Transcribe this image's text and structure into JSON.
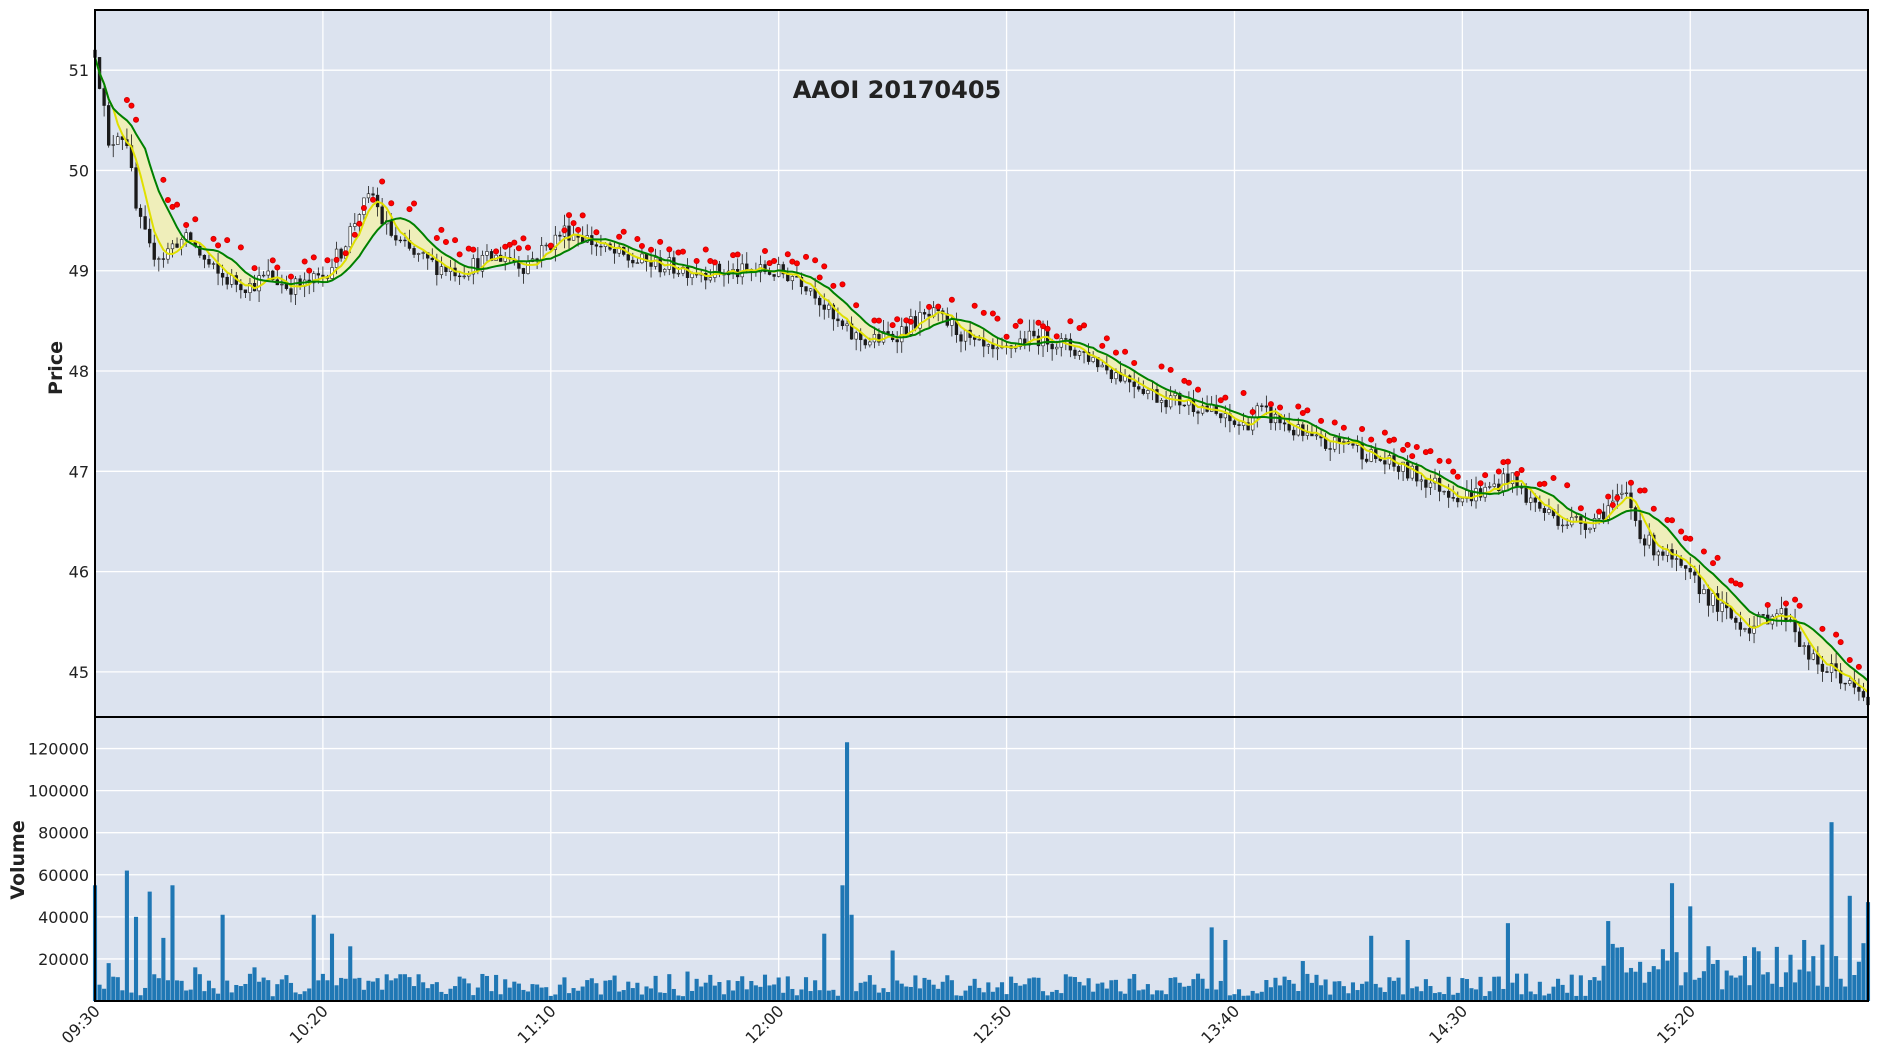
{
  "chart_data": {
    "type": "candlestick",
    "title": "AAOI 20170405",
    "colors": {
      "background": "#dce3ef",
      "grid": "#ffffff",
      "frame": "#000000",
      "candle": "#1a1a1a",
      "volume": "#1f77b4",
      "marker": "#ff0000",
      "ma_fast": "#e0e000",
      "ma_slow": "#008000",
      "band": "#f2f0b0"
    },
    "price_panel": {
      "ylabel": "Price",
      "ylim": [
        44.55,
        51.6
      ],
      "yticks": [
        45,
        46,
        47,
        48,
        49,
        50,
        51
      ],
      "ytick_labels": [
        "45",
        "46",
        "47",
        "48",
        "49",
        "50",
        "51"
      ]
    },
    "volume_panel": {
      "ylabel": "Volume",
      "ylim": [
        0,
        135000
      ],
      "yticks": [
        20000,
        40000,
        60000,
        80000,
        100000,
        120000
      ],
      "ytick_labels": [
        "20000",
        "40000",
        "60000",
        "80000",
        "100000",
        "120000"
      ]
    },
    "x_axis": {
      "start": "09:30",
      "end": "15:59",
      "xticks": [
        "09:30",
        "10:20",
        "11:10",
        "12:00",
        "12:50",
        "13:40",
        "14:30",
        "15:20"
      ]
    },
    "price_path": [
      [
        "09:30",
        51.2
      ],
      [
        "09:32",
        50.6
      ],
      [
        "09:33",
        50.2
      ],
      [
        "09:35",
        50.4
      ],
      [
        "09:37",
        50.3
      ],
      [
        "09:39",
        49.6
      ],
      [
        "09:42",
        49.2
      ],
      [
        "09:45",
        49.15
      ],
      [
        "09:48",
        49.3
      ],
      [
        "09:51",
        49.3
      ],
      [
        "09:54",
        49.1
      ],
      [
        "09:57",
        48.95
      ],
      [
        "10:00",
        48.9
      ],
      [
        "10:04",
        48.85
      ],
      [
        "10:08",
        48.95
      ],
      [
        "10:12",
        48.85
      ],
      [
        "10:16",
        48.85
      ],
      [
        "10:20",
        48.95
      ],
      [
        "10:24",
        49.2
      ],
      [
        "10:28",
        49.6
      ],
      [
        "10:31",
        49.75
      ],
      [
        "10:33",
        49.5
      ],
      [
        "10:36",
        49.3
      ],
      [
        "10:40",
        49.15
      ],
      [
        "10:45",
        49.05
      ],
      [
        "10:50",
        49.0
      ],
      [
        "10:55",
        49.1
      ],
      [
        "11:00",
        49.15
      ],
      [
        "11:04",
        49.05
      ],
      [
        "11:08",
        49.2
      ],
      [
        "11:13",
        49.4
      ],
      [
        "11:17",
        49.35
      ],
      [
        "11:22",
        49.2
      ],
      [
        "11:28",
        49.1
      ],
      [
        "11:35",
        49.05
      ],
      [
        "11:42",
        49.0
      ],
      [
        "11:50",
        48.98
      ],
      [
        "11:57",
        49.0
      ],
      [
        "12:04",
        48.95
      ],
      [
        "12:08",
        48.8
      ],
      [
        "12:12",
        48.5
      ],
      [
        "12:16",
        48.35
      ],
      [
        "12:20",
        48.3
      ],
      [
        "12:25",
        48.35
      ],
      [
        "12:30",
        48.5
      ],
      [
        "12:34",
        48.55
      ],
      [
        "12:38",
        48.45
      ],
      [
        "12:43",
        48.25
      ],
      [
        "12:48",
        48.15
      ],
      [
        "12:53",
        48.3
      ],
      [
        "12:58",
        48.35
      ],
      [
        "13:03",
        48.25
      ],
      [
        "13:08",
        48.15
      ],
      [
        "13:13",
        48.0
      ],
      [
        "13:18",
        47.9
      ],
      [
        "13:23",
        47.75
      ],
      [
        "13:28",
        47.7
      ],
      [
        "13:33",
        47.65
      ],
      [
        "13:38",
        47.5
      ],
      [
        "13:42",
        47.45
      ],
      [
        "13:45",
        47.6
      ],
      [
        "13:50",
        47.5
      ],
      [
        "13:55",
        47.35
      ],
      [
        "14:00",
        47.25
      ],
      [
        "14:05",
        47.3
      ],
      [
        "14:10",
        47.15
      ],
      [
        "14:15",
        47.05
      ],
      [
        "14:20",
        46.95
      ],
      [
        "14:25",
        46.85
      ],
      [
        "14:30",
        46.75
      ],
      [
        "14:35",
        46.8
      ],
      [
        "14:40",
        46.95
      ],
      [
        "14:44",
        46.75
      ],
      [
        "14:48",
        46.6
      ],
      [
        "14:53",
        46.5
      ],
      [
        "14:58",
        46.5
      ],
      [
        "15:02",
        46.65
      ],
      [
        "15:06",
        46.75
      ],
      [
        "15:10",
        46.3
      ],
      [
        "15:14",
        46.2
      ],
      [
        "15:18",
        46.0
      ],
      [
        "15:22",
        45.85
      ],
      [
        "15:26",
        45.65
      ],
      [
        "15:30",
        45.5
      ],
      [
        "15:34",
        45.45
      ],
      [
        "15:38",
        45.6
      ],
      [
        "15:42",
        45.55
      ],
      [
        "15:45",
        45.2
      ],
      [
        "15:48",
        45.05
      ],
      [
        "15:52",
        45.0
      ],
      [
        "15:55",
        44.85
      ],
      [
        "15:59",
        44.7
      ]
    ],
    "volume_peaks": [
      [
        "09:30",
        55000
      ],
      [
        "09:33",
        18000
      ],
      [
        "09:37",
        62000
      ],
      [
        "09:39",
        40000
      ],
      [
        "09:42",
        52000
      ],
      [
        "09:45",
        30000
      ],
      [
        "09:47",
        55000
      ],
      [
        "09:52",
        16000
      ],
      [
        "09:58",
        41000
      ],
      [
        "10:05",
        16000
      ],
      [
        "10:18",
        41000
      ],
      [
        "10:22",
        32000
      ],
      [
        "10:26",
        26000
      ],
      [
        "11:40",
        14000
      ],
      [
        "12:10",
        32000
      ],
      [
        "12:14",
        55000
      ],
      [
        "12:15",
        123000
      ],
      [
        "12:16",
        41000
      ],
      [
        "12:25",
        24000
      ],
      [
        "13:35",
        35000
      ],
      [
        "13:38",
        29000
      ],
      [
        "13:55",
        19000
      ],
      [
        "14:10",
        31000
      ],
      [
        "14:18",
        29000
      ],
      [
        "14:40",
        37000
      ],
      [
        "15:02",
        38000
      ],
      [
        "15:16",
        56000
      ],
      [
        "15:20",
        45000
      ],
      [
        "15:45",
        29000
      ],
      [
        "15:51",
        85000
      ],
      [
        "15:55",
        50000
      ],
      [
        "15:59",
        47000
      ]
    ],
    "volume_base": 9000
  }
}
